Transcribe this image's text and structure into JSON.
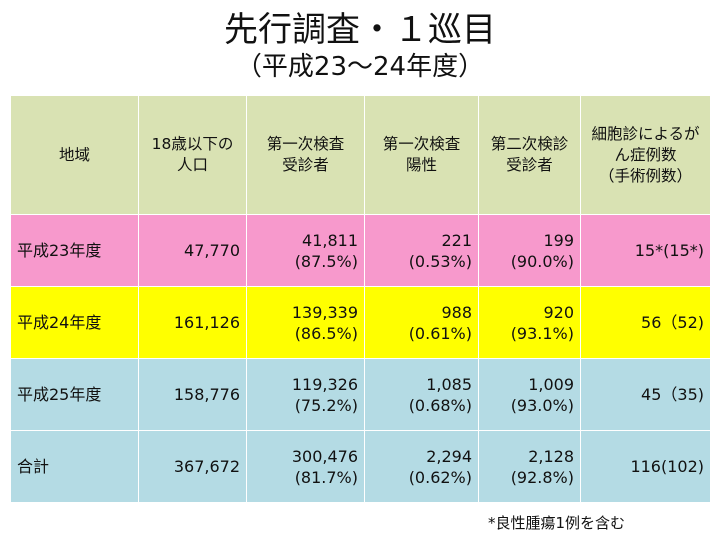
{
  "title": "先行調査・１巡目",
  "subtitle": "（平成23～24年度）",
  "headers": [
    {
      "l1": "地域",
      "l2": ""
    },
    {
      "l1": "18歳以下の",
      "l2": "人口"
    },
    {
      "l1": "第一次検査",
      "l2": "受診者"
    },
    {
      "l1": "第一次検査",
      "l2": "陽性"
    },
    {
      "l1": "第二次検診",
      "l2": "受診者"
    },
    {
      "l1": "細胞診によるが",
      "l2": "ん症例数",
      "l3": "（手術例数）"
    }
  ],
  "rows": [
    {
      "region": "平成23年度",
      "population": "47,770",
      "first_v": "41,811",
      "first_p": "(87.5%)",
      "pos_v": "221",
      "pos_p": "(0.53%)",
      "second_v": "199",
      "second_p": "(90.0%)",
      "cases": "15*(15*)"
    },
    {
      "region": "平成24年度",
      "population": "161,126",
      "first_v": "139,339",
      "first_p": "(86.5%)",
      "pos_v": "988",
      "pos_p": "(0.61%)",
      "second_v": "920",
      "second_p": "(93.1%)",
      "cases": "56（52)"
    },
    {
      "region": "平成25年度",
      "population": "158,776",
      "first_v": "119,326",
      "first_p": "(75.2%)",
      "pos_v": "1,085",
      "pos_p": "(0.68%)",
      "second_v": "1,009",
      "second_p": "(93.0%)",
      "cases": "45（35)"
    },
    {
      "region": "合計",
      "population": "367,672",
      "first_v": "300,476",
      "first_p": "(81.7%)",
      "pos_v": "2,294",
      "pos_p": "(0.62%)",
      "second_v": "2,128",
      "second_p": "(92.8%)",
      "cases": "116(102)"
    }
  ],
  "footnote": "*良性腫瘍1例を含む",
  "colors": {
    "header": "#d9e2b3",
    "row_h23": "#f799cc",
    "row_h24": "#ffff00",
    "row_h25": "#b4dbe4",
    "row_total": "#b4dbe4"
  }
}
